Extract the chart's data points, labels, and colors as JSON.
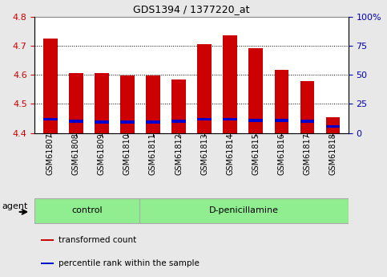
{
  "title": "GDS1394 / 1377220_at",
  "samples": [
    "GSM61807",
    "GSM61808",
    "GSM61809",
    "GSM61810",
    "GSM61811",
    "GSM61812",
    "GSM61813",
    "GSM61814",
    "GSM61815",
    "GSM61816",
    "GSM61817",
    "GSM61818"
  ],
  "red_values": [
    4.725,
    4.605,
    4.605,
    4.597,
    4.597,
    4.583,
    4.705,
    4.735,
    4.692,
    4.618,
    4.577,
    4.455
  ],
  "blue_values": [
    4.447,
    4.44,
    4.438,
    4.438,
    4.437,
    4.44,
    4.447,
    4.447,
    4.443,
    4.443,
    4.44,
    4.422
  ],
  "ymin": 4.4,
  "ymax": 4.8,
  "y2min": 0,
  "y2max": 100,
  "yticks": [
    4.4,
    4.5,
    4.6,
    4.7,
    4.8
  ],
  "y2ticks": [
    0,
    25,
    50,
    75,
    100
  ],
  "y2ticklabels": [
    "0",
    "25",
    "50",
    "75",
    "100%"
  ],
  "control_count": 4,
  "treatment_count": 8,
  "group_labels": [
    "control",
    "D-penicillamine"
  ],
  "group_color": "#90ee90",
  "group_edge_color": "#aaaaaa",
  "bar_color": "#cc0000",
  "blue_color": "#0000cc",
  "bar_width": 0.55,
  "ylabel_color": "#cc0000",
  "y2label_color": "#0000bb",
  "background_color": "#e8e8e8",
  "plot_bg_color": "#ffffff",
  "grid_color": "#000000",
  "agent_label": "agent",
  "legend_items": [
    {
      "color": "#cc0000",
      "label": "transformed count"
    },
    {
      "color": "#0000cc",
      "label": "percentile rank within the sample"
    }
  ],
  "title_fontsize": 9,
  "tick_fontsize": 7,
  "group_fontsize": 8,
  "legend_fontsize": 7.5
}
